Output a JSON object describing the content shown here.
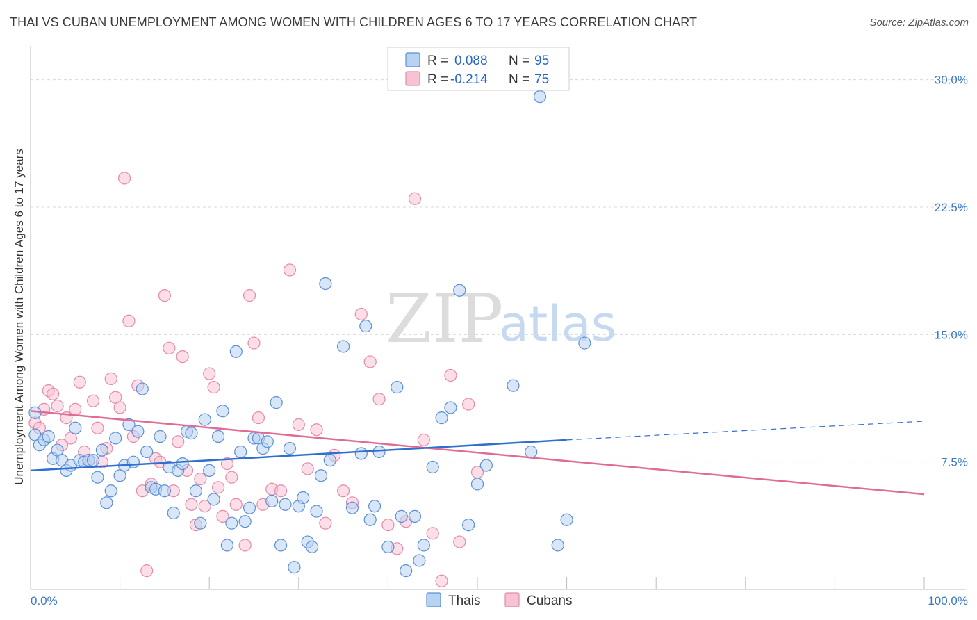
{
  "title": "THAI VS CUBAN UNEMPLOYMENT AMONG WOMEN WITH CHILDREN AGES 6 TO 17 YEARS CORRELATION CHART",
  "source": "Source: ZipAtlas.com",
  "watermark": {
    "zip": "ZIP",
    "atlas": "atlas"
  },
  "colors": {
    "thais_fill": "#b8d2f2",
    "thais_stroke": "#5a8fd6",
    "thais_line": "#2f6fd0",
    "cubans_fill": "#f7c3d3",
    "cubans_stroke": "#e58aa8",
    "cubans_line": "#e06b96",
    "tick_text": "#3b78c7",
    "grid": "#d8d8d8"
  },
  "legend": {
    "rows": [
      {
        "r_label": "R = ",
        "r_value": "0.088",
        "n_label": "N = ",
        "n_value": "95"
      },
      {
        "r_label": "R = ",
        "r_value": "-0.214",
        "n_label": "N = ",
        "n_value": "75"
      }
    ]
  },
  "chart_data": {
    "type": "scatter",
    "xlabel": "",
    "ylabel": "Unemployment Among Women with Children Ages 6 to 17 years",
    "xlim": [
      0,
      100
    ],
    "ylim": [
      0,
      31.5
    ],
    "x_tick_labels": [
      "0.0%",
      "100.0%"
    ],
    "y_ticks": [
      7.5,
      15.0,
      22.5,
      30.0
    ],
    "y_tick_labels": [
      "7.5%",
      "15.0%",
      "22.5%",
      "30.0%"
    ],
    "grid": true,
    "legend_position": "top-center",
    "series": [
      {
        "name": "Thais",
        "trend": {
          "x0": 0,
          "y0": 7.0,
          "x1": 60,
          "y1": 8.8,
          "dashed_to_x": 100,
          "dashed_to_y": 9.9
        },
        "points": [
          [
            0.5,
            10.4
          ],
          [
            0.5,
            9.1
          ],
          [
            1,
            8.5
          ],
          [
            1.5,
            8.8
          ],
          [
            2,
            9.0
          ],
          [
            2.5,
            7.7
          ],
          [
            3,
            8.2
          ],
          [
            3.5,
            7.6
          ],
          [
            4,
            7.0
          ],
          [
            4.5,
            7.3
          ],
          [
            5,
            9.5
          ],
          [
            5.5,
            7.6
          ],
          [
            6,
            7.5
          ],
          [
            6.5,
            7.6
          ],
          [
            7,
            7.6
          ],
          [
            7.5,
            6.6
          ],
          [
            8,
            8.2
          ],
          [
            8.5,
            5.1
          ],
          [
            9,
            5.8
          ],
          [
            9.5,
            8.9
          ],
          [
            10,
            6.7
          ],
          [
            10.5,
            7.3
          ],
          [
            11,
            9.7
          ],
          [
            11.5,
            7.5
          ],
          [
            12,
            9.3
          ],
          [
            12.5,
            11.8
          ],
          [
            13,
            8.1
          ],
          [
            13.5,
            6.0
          ],
          [
            14,
            5.9
          ],
          [
            14.5,
            9.0
          ],
          [
            15,
            5.8
          ],
          [
            15.5,
            7.2
          ],
          [
            16,
            4.5
          ],
          [
            16.5,
            7.0
          ],
          [
            17,
            7.4
          ],
          [
            17.5,
            9.3
          ],
          [
            18,
            9.2
          ],
          [
            18.5,
            5.8
          ],
          [
            19,
            3.9
          ],
          [
            19.5,
            10.0
          ],
          [
            20,
            7.0
          ],
          [
            20.5,
            5.3
          ],
          [
            21,
            9.0
          ],
          [
            21.5,
            10.5
          ],
          [
            22,
            2.6
          ],
          [
            22.5,
            3.9
          ],
          [
            23,
            14.0
          ],
          [
            23.5,
            8.1
          ],
          [
            24,
            4.0
          ],
          [
            24.5,
            4.8
          ],
          [
            25,
            8.9
          ],
          [
            25.5,
            8.9
          ],
          [
            26,
            8.3
          ],
          [
            26.5,
            8.7
          ],
          [
            27,
            5.2
          ],
          [
            27.5,
            11.0
          ],
          [
            28,
            2.6
          ],
          [
            28.5,
            5.0
          ],
          [
            29,
            8.3
          ],
          [
            29.5,
            1.3
          ],
          [
            30,
            4.9
          ],
          [
            30.5,
            5.4
          ],
          [
            31,
            2.8
          ],
          [
            31.5,
            2.5
          ],
          [
            32,
            4.6
          ],
          [
            32.5,
            6.7
          ],
          [
            33,
            18.0
          ],
          [
            33.5,
            7.6
          ],
          [
            35,
            14.3
          ],
          [
            36,
            4.8
          ],
          [
            37,
            8.0
          ],
          [
            37.5,
            15.5
          ],
          [
            38,
            4.1
          ],
          [
            38.5,
            4.9
          ],
          [
            39,
            8.1
          ],
          [
            40,
            2.5
          ],
          [
            41,
            11.9
          ],
          [
            41.5,
            4.3
          ],
          [
            42,
            1.1
          ],
          [
            43,
            4.3
          ],
          [
            43.5,
            1.7
          ],
          [
            44,
            2.6
          ],
          [
            45,
            7.2
          ],
          [
            46,
            10.1
          ],
          [
            47,
            10.7
          ],
          [
            48,
            17.6
          ],
          [
            49,
            3.8
          ],
          [
            50,
            6.2
          ],
          [
            51,
            7.3
          ],
          [
            54,
            12.0
          ],
          [
            56,
            8.1
          ],
          [
            57,
            29.0
          ],
          [
            59,
            2.6
          ],
          [
            60,
            4.1
          ],
          [
            62,
            14.5
          ]
        ]
      },
      {
        "name": "Cubans",
        "trend": {
          "x0": 0,
          "y0": 10.5,
          "x1": 100,
          "y1": 5.6
        },
        "points": [
          [
            0.5,
            9.8
          ],
          [
            1,
            9.5
          ],
          [
            1.5,
            10.6
          ],
          [
            2,
            11.7
          ],
          [
            2.5,
            11.5
          ],
          [
            3,
            10.8
          ],
          [
            3.5,
            8.5
          ],
          [
            4,
            10.1
          ],
          [
            4.5,
            8.9
          ],
          [
            5,
            10.6
          ],
          [
            5.5,
            12.2
          ],
          [
            6,
            8.1
          ],
          [
            6.5,
            7.6
          ],
          [
            7,
            11.1
          ],
          [
            7.5,
            9.5
          ],
          [
            8,
            7.5
          ],
          [
            8.5,
            8.3
          ],
          [
            9,
            12.4
          ],
          [
            9.5,
            11.3
          ],
          [
            10,
            10.7
          ],
          [
            10.5,
            24.2
          ],
          [
            11,
            15.8
          ],
          [
            11.5,
            9.0
          ],
          [
            12,
            12.0
          ],
          [
            12.5,
            5.8
          ],
          [
            13,
            1.1
          ],
          [
            13.5,
            6.2
          ],
          [
            14,
            7.7
          ],
          [
            14.5,
            7.5
          ],
          [
            15,
            17.3
          ],
          [
            15.5,
            14.2
          ],
          [
            16,
            5.8
          ],
          [
            16.5,
            8.7
          ],
          [
            17,
            13.7
          ],
          [
            17.5,
            7.0
          ],
          [
            18,
            5.0
          ],
          [
            18.5,
            3.8
          ],
          [
            19,
            6.5
          ],
          [
            19.5,
            4.9
          ],
          [
            20,
            12.7
          ],
          [
            20.5,
            11.9
          ],
          [
            21,
            6.0
          ],
          [
            21.5,
            4.3
          ],
          [
            22,
            7.4
          ],
          [
            22.5,
            6.6
          ],
          [
            23,
            5.0
          ],
          [
            24,
            2.6
          ],
          [
            24.5,
            17.3
          ],
          [
            25,
            14.5
          ],
          [
            25.5,
            10.1
          ],
          [
            26,
            5.0
          ],
          [
            27,
            5.9
          ],
          [
            28,
            5.8
          ],
          [
            29,
            18.8
          ],
          [
            30,
            9.7
          ],
          [
            31,
            7.1
          ],
          [
            32,
            9.4
          ],
          [
            33,
            3.9
          ],
          [
            34,
            7.9
          ],
          [
            35,
            5.8
          ],
          [
            36,
            5.1
          ],
          [
            37,
            16.2
          ],
          [
            38,
            13.4
          ],
          [
            39,
            11.2
          ],
          [
            40,
            3.8
          ],
          [
            41,
            2.4
          ],
          [
            42,
            4.0
          ],
          [
            43,
            23.0
          ],
          [
            44,
            8.8
          ],
          [
            45,
            3.3
          ],
          [
            46,
            0.5
          ],
          [
            47,
            12.6
          ],
          [
            48,
            2.8
          ],
          [
            49,
            10.9
          ],
          [
            50,
            6.9
          ]
        ]
      }
    ]
  }
}
